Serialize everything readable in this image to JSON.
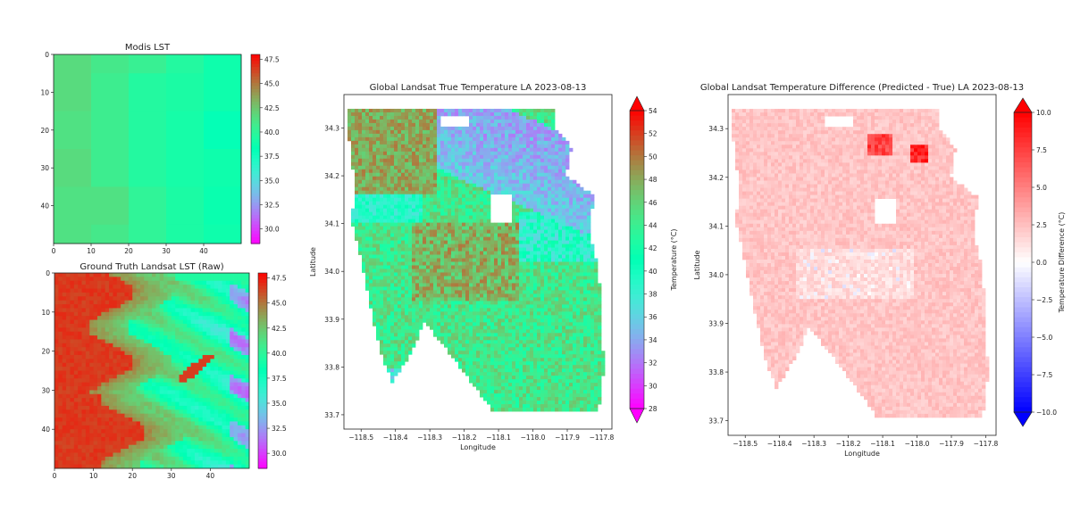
{
  "chart_data": [
    {
      "id": "modis",
      "type": "heatmap",
      "title": "Modis LST",
      "xlabel": "",
      "ylabel": "",
      "xlim": [
        0,
        50
      ],
      "ylim": [
        50,
        0
      ],
      "x_ticks": [
        "0",
        "10",
        "20",
        "30",
        "40"
      ],
      "y_ticks": [
        "0",
        "10",
        "20",
        "30",
        "40"
      ],
      "colormap": "rainbow",
      "colorbar": {
        "range": [
          28.5,
          48
        ],
        "ticks": [
          "47.5",
          "45.0",
          "42.5",
          "40.0",
          "37.5",
          "35.0",
          "32.5",
          "30.0"
        ],
        "label": ""
      },
      "grid_cols_x": [
        0,
        10,
        20,
        30,
        40,
        50
      ],
      "grid_rows_y": [
        0,
        5,
        15,
        25,
        35,
        45,
        50
      ],
      "values": [
        [
          41.6,
          40.9,
          40.4,
          39.6,
          38.8
        ],
        [
          41.6,
          40.6,
          39.6,
          39.3,
          38.8
        ],
        [
          41.3,
          40.6,
          39.6,
          39.1,
          38.1
        ],
        [
          41.6,
          40.6,
          39.6,
          39.1,
          38.8
        ],
        [
          41.3,
          41.3,
          40.1,
          39.3,
          38.6
        ],
        [
          41.3,
          40.9,
          40.1,
          39.3,
          38.8
        ]
      ]
    },
    {
      "id": "landsat_raw",
      "type": "heatmap",
      "title": "Ground Truth Landsat LST (Raw)",
      "xlabel": "",
      "ylabel": "",
      "xlim": [
        0,
        50
      ],
      "ylim": [
        50,
        0
      ],
      "x_ticks": [
        "0",
        "10",
        "20",
        "30",
        "40"
      ],
      "y_ticks": [
        "0",
        "10",
        "20",
        "30",
        "40"
      ],
      "colormap": "rainbow",
      "colorbar": {
        "range": [
          28.5,
          48
        ],
        "ticks": [
          "47.5",
          "45.0",
          "42.5",
          "40.0",
          "37.5",
          "35.0",
          "32.5",
          "30.0"
        ],
        "label": ""
      },
      "pattern": "hot (~46-48) on left columns 0-15, warm (~43) in middle, cooler (~36-40) striped toward right with blue (~32) patches near right edge"
    },
    {
      "id": "landsat_true",
      "type": "heatmap",
      "title": "Global Landsat True Temperature LA 2023-08-13",
      "xlabel": "Longitude",
      "ylabel": "Latitude",
      "xlim": [
        -118.55,
        -117.77
      ],
      "ylim": [
        33.67,
        34.37
      ],
      "x_ticks": [
        "−118.5",
        "−118.4",
        "−118.3",
        "−118.2",
        "−118.1",
        "−118.0",
        "−117.9",
        "−117.8"
      ],
      "y_ticks": [
        "34.3",
        "34.2",
        "34.1",
        "34.0",
        "33.9",
        "33.8",
        "33.7"
      ],
      "colormap": "rainbow",
      "colorbar": {
        "range": [
          28,
          54
        ],
        "ticks": [
          "54",
          "52",
          "50",
          "48",
          "46",
          "44",
          "42",
          "40",
          "38",
          "36",
          "34",
          "32",
          "30",
          "28"
        ],
        "label": "Temperature (°C)",
        "extend": "both"
      }
    },
    {
      "id": "landsat_diff",
      "type": "heatmap",
      "title": "Global Landsat Temperature Difference (Predicted - True) LA 2023-08-13",
      "xlabel": "Longitude",
      "ylabel": "Latitude",
      "xlim": [
        -118.55,
        -117.77
      ],
      "ylim": [
        33.67,
        34.37
      ],
      "x_ticks": [
        "−118.5",
        "−118.4",
        "−118.3",
        "−118.2",
        "−118.1",
        "−118.0",
        "−117.9",
        "−117.8"
      ],
      "y_ticks": [
        "34.3",
        "34.2",
        "34.1",
        "34.0",
        "33.9",
        "33.8",
        "33.7"
      ],
      "colormap": "bwr",
      "colorbar": {
        "range": [
          -10,
          10
        ],
        "ticks": [
          "10.0",
          "7.5",
          "5.0",
          "2.5",
          "0.0",
          "−2.5",
          "−5.0",
          "−7.5",
          "−10.0"
        ],
        "label": "Temperature Difference (°C)",
        "extend": "both"
      }
    }
  ]
}
